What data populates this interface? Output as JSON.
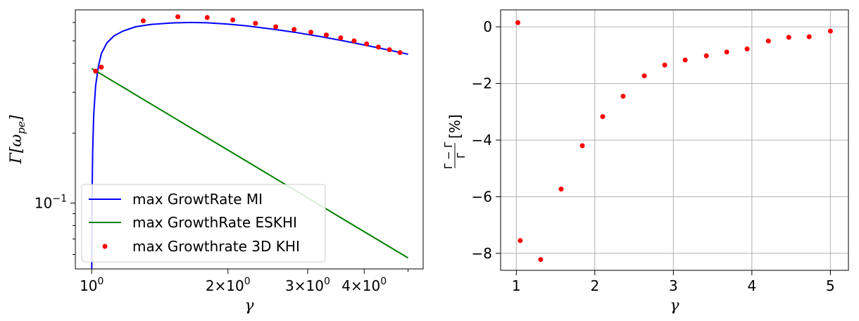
{
  "chart_data": [
    {
      "type": "line",
      "title": "",
      "xlabel": "γ",
      "ylabel": "Γ[ω_pe]",
      "xscale": "log",
      "yscale": "log",
      "xlim": [
        0.92,
        5.4
      ],
      "ylim": [
        0.052,
        0.68
      ],
      "grid": false,
      "legend_position": "lower-left",
      "x_ticks": [
        {
          "value": 1,
          "base": "10",
          "exp": "0"
        },
        {
          "value": 2,
          "base": "2×10",
          "exp": "0"
        },
        {
          "value": 3,
          "base": "3×10",
          "exp": "0"
        },
        {
          "value": 4,
          "base": "4×10",
          "exp": "0"
        }
      ],
      "y_ticks": [
        {
          "value": 0.1,
          "base": "10",
          "exp": "−1"
        }
      ],
      "series": [
        {
          "name": "max GrowtRate MI",
          "kind": "line",
          "color": "#0000ff",
          "x": [
            1.0,
            1.002,
            1.005,
            1.01,
            1.02,
            1.035,
            1.05,
            1.08,
            1.12,
            1.17,
            1.25,
            1.35,
            1.5,
            1.65,
            1.8,
            2.0,
            2.2,
            2.5,
            2.8,
            3.2,
            3.6,
            4.0,
            4.5,
            5.0
          ],
          "y": [
            0.052,
            0.11,
            0.17,
            0.24,
            0.32,
            0.39,
            0.44,
            0.49,
            0.525,
            0.55,
            0.575,
            0.588,
            0.597,
            0.6,
            0.598,
            0.59,
            0.58,
            0.562,
            0.545,
            0.522,
            0.5,
            0.48,
            0.458,
            0.438
          ]
        },
        {
          "name": "max GrowthRate ESKHI",
          "kind": "line",
          "color": "#008000",
          "x": [
            1.0,
            5.0
          ],
          "y": [
            0.38,
            0.058
          ]
        },
        {
          "name": "max Growthrate 3D KHI",
          "kind": "scatter",
          "color": "#ff0000",
          "x": [
            1.02,
            1.05,
            1.3,
            1.55,
            1.8,
            2.05,
            2.3,
            2.55,
            2.8,
            3.05,
            3.3,
            3.55,
            3.8,
            4.05,
            4.3,
            4.55,
            4.8
          ],
          "y": [
            0.37,
            0.385,
            0.61,
            0.635,
            0.63,
            0.615,
            0.595,
            0.575,
            0.56,
            0.545,
            0.53,
            0.515,
            0.5,
            0.485,
            0.47,
            0.458,
            0.445
          ]
        }
      ]
    },
    {
      "type": "scatter",
      "title": "",
      "xlabel": "γ",
      "ylabel": "Γ̄−Γ / Γ [%]",
      "ylabel_parts": {
        "numerator": "Γ̄ − Γ",
        "denominator": "Γ",
        "suffix": "[%]"
      },
      "xlim": [
        0.8,
        5.23
      ],
      "ylim": [
        -8.6,
        0.6
      ],
      "grid": true,
      "x_ticks": [
        "1",
        "2",
        "3",
        "4",
        "5"
      ],
      "y_ticks": [
        "0",
        "−2",
        "−4",
        "−6",
        "−8"
      ],
      "x_tick_values": [
        1,
        2,
        3,
        4,
        5
      ],
      "y_tick_values": [
        0,
        -2,
        -4,
        -6,
        -8
      ],
      "series": [
        {
          "color": "#ff0000",
          "x": [
            1.02,
            1.05,
            1.31,
            1.57,
            1.84,
            2.1,
            2.36,
            2.63,
            2.89,
            3.15,
            3.42,
            3.68,
            3.94,
            4.21,
            4.47,
            4.73,
            5.0
          ],
          "y": [
            0.15,
            -7.55,
            -8.22,
            -5.73,
            -4.2,
            -3.17,
            -2.45,
            -1.73,
            -1.35,
            -1.17,
            -1.02,
            -0.89,
            -0.78,
            -0.5,
            -0.37,
            -0.35,
            -0.15
          ]
        }
      ]
    }
  ]
}
